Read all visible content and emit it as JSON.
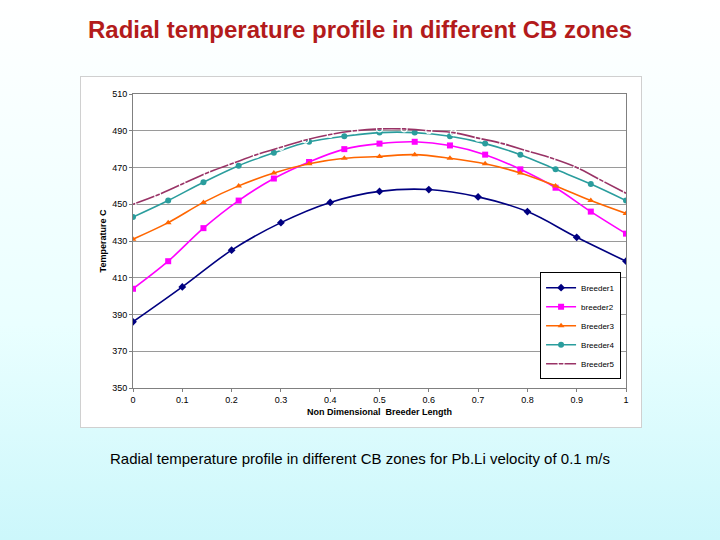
{
  "header": {
    "title": "Radial temperature profile in different CB zones"
  },
  "caption": "Radial temperature profile in different CB zones for Pb.Li velocity of 0.1 m/s",
  "chart_data": {
    "type": "line",
    "x_label": "Non Dimensional  Breeder Length",
    "y_label": "Temperature C",
    "xlim": [
      0,
      1
    ],
    "xticks": [
      0,
      0.1,
      0.2,
      0.3,
      0.4,
      0.5,
      0.6,
      0.7,
      0.8,
      0.9,
      1
    ],
    "ylim": [
      350,
      510
    ],
    "yticks": [
      350,
      370,
      390,
      410,
      430,
      450,
      470,
      490,
      510
    ],
    "grid": true,
    "legend": "lower right",
    "series": [
      {
        "name": "Breeder1",
        "color": "#000080",
        "marker": "diamond",
        "x": [
          0,
          0.1,
          0.2,
          0.3,
          0.4,
          0.5,
          0.6,
          0.7,
          0.8,
          0.9,
          1
        ],
        "values": [
          386,
          405,
          425,
          440,
          451,
          457,
          458,
          454,
          446,
          432,
          419
        ]
      },
      {
        "name": "breeder2",
        "color": "#ff00ff",
        "marker": "square",
        "x": [
          0,
          0.0714,
          0.1429,
          0.2143,
          0.2857,
          0.3571,
          0.4286,
          0.5,
          0.5714,
          0.6429,
          0.7143,
          0.7857,
          0.8571,
          0.9286,
          1
        ],
        "values": [
          404,
          419,
          437,
          452,
          464,
          473,
          480,
          483,
          484,
          482,
          477,
          469,
          459,
          446,
          434
        ]
      },
      {
        "name": "Breeder3",
        "color": "#ff6600",
        "marker": "triangle-up",
        "x": [
          0,
          0.0714,
          0.1429,
          0.2143,
          0.2857,
          0.3571,
          0.4286,
          0.5,
          0.5714,
          0.6429,
          0.7143,
          0.7857,
          0.8571,
          0.9286,
          1
        ],
        "values": [
          431,
          440,
          451,
          460,
          467,
          472,
          475,
          476,
          477,
          475,
          472,
          467,
          460,
          452,
          445
        ]
      },
      {
        "name": "Breeder4",
        "color": "#2a9d9d",
        "marker": "circle",
        "x": [
          0,
          0.0714,
          0.1429,
          0.2143,
          0.2857,
          0.3571,
          0.4286,
          0.5,
          0.5714,
          0.6429,
          0.7143,
          0.7857,
          0.8571,
          0.9286,
          1
        ],
        "values": [
          443,
          452,
          462,
          471,
          478,
          484,
          487,
          489,
          489,
          487,
          483,
          477,
          469,
          461,
          452
        ]
      },
      {
        "name": "Breeder5",
        "color": "#993366",
        "marker": "circle-open",
        "x": [
          0,
          0.05,
          0.1,
          0.15,
          0.2,
          0.25,
          0.3,
          0.35,
          0.4,
          0.45,
          0.5,
          0.55,
          0.6,
          0.65,
          0.7,
          0.75,
          0.8,
          0.85,
          0.9,
          0.95,
          1
        ],
        "values": [
          450,
          455,
          461,
          467,
          472,
          477,
          481,
          485,
          488,
          490,
          491,
          491,
          490,
          489,
          486,
          483,
          479,
          475,
          470,
          463,
          456
        ]
      }
    ]
  }
}
